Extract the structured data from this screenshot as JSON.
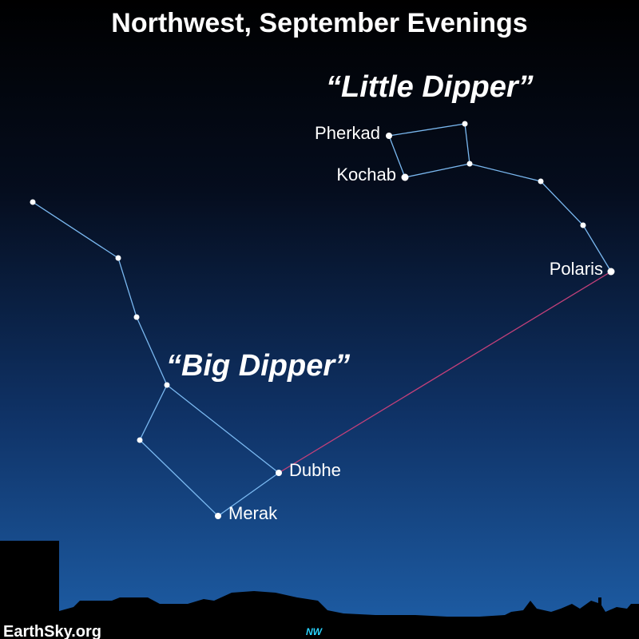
{
  "title": "Northwest, September Evenings",
  "groups": {
    "little_dipper": "“Little Dipper”",
    "big_dipper": "“Big Dipper”"
  },
  "stars": {
    "pherkad": "Pherkad",
    "kochab": "Kochab",
    "polaris": "Polaris",
    "dubhe": "Dubhe",
    "merak": "Merak"
  },
  "credit": "EarthSky.org",
  "direction": "NW",
  "colors": {
    "sky_top": "#000000",
    "sky_bottom": "#1e5fa8",
    "constellation_line": "#7ab8f0",
    "pointer_line": "#c2407a",
    "star": "#ffffff",
    "direction_text": "#2ad4ff"
  }
}
